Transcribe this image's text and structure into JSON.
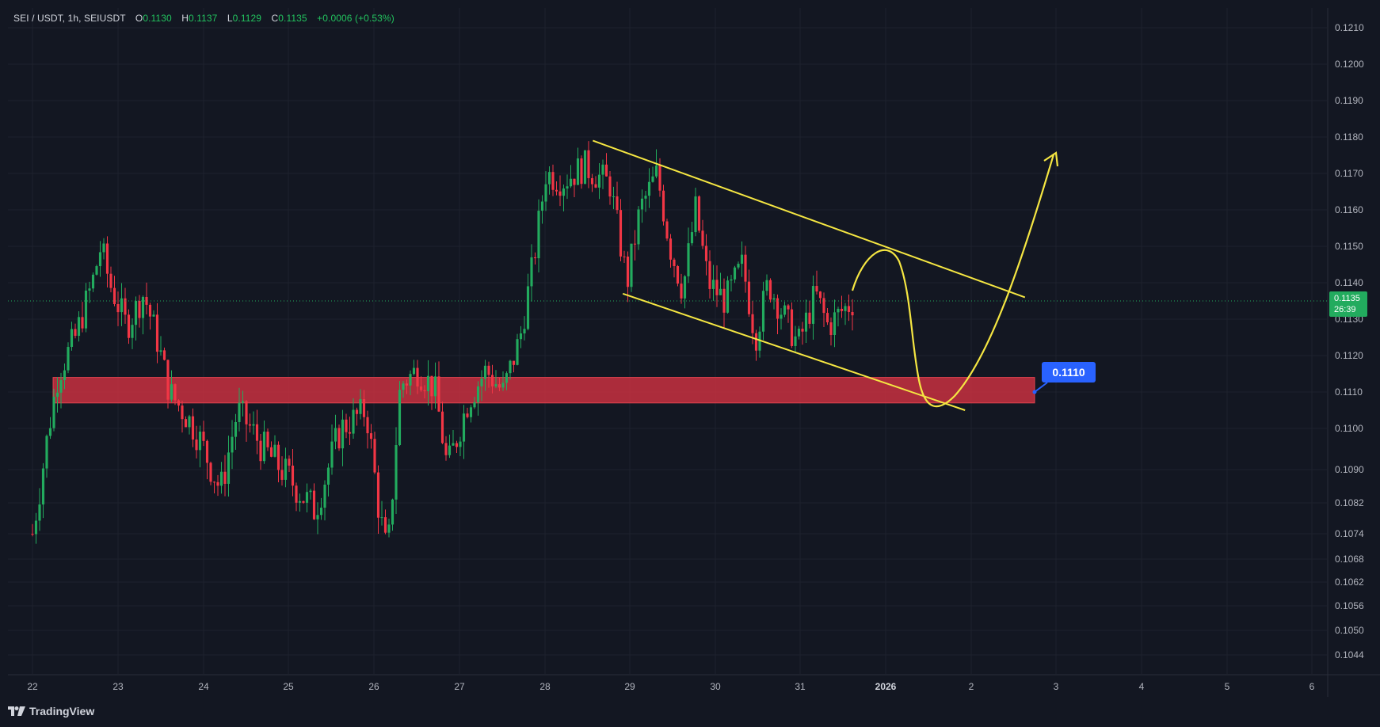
{
  "header": {
    "symbol": "SEI / USDT, 1h, SEIUSDT",
    "open_label": "O",
    "open": "0.1130",
    "high_label": "H",
    "high": "0.1137",
    "low_label": "L",
    "low": "0.1129",
    "close_label": "C",
    "close": "0.1135",
    "change": "+0.0006 (+0.53%)"
  },
  "brand": {
    "name": "TradingView",
    "icon": "tradingview-logo-icon"
  },
  "price_tag": {
    "price": "0.1135",
    "countdown": "26:39",
    "color": "#22ab5e"
  },
  "callout": {
    "label": "0.1110",
    "color": "#2962ff"
  },
  "colors": {
    "background": "#131722",
    "grid": "#1e222d",
    "up": "#22ab5e",
    "down": "#f23645",
    "drawing": "#f5e642",
    "zone": "#c8303f"
  },
  "chart_data": {
    "type": "candlestick",
    "symbol": "SEIUSDT",
    "timeframe": "1h",
    "x_ticks": [
      "22",
      "23",
      "24",
      "25",
      "26",
      "27",
      "28",
      "29",
      "30",
      "31",
      "2026",
      "2",
      "3",
      "4",
      "5",
      "6"
    ],
    "y_ticks": [
      "0.1210",
      "0.1200",
      "0.1190",
      "0.1180",
      "0.1170",
      "0.1160",
      "0.1150",
      "0.1140",
      "0.1130",
      "0.1120",
      "0.1110",
      "0.1100",
      "0.1090",
      "0.1082",
      "0.1074",
      "0.1068",
      "0.1062",
      "0.1056",
      "0.1050",
      "0.1044"
    ],
    "current_price": 0.1135,
    "support_zone": [
      0.1107,
      0.1114
    ],
    "support_level": 0.111,
    "channel_upper": [
      [
        28.55,
        0.1179
      ],
      [
        2.6,
        0.1136
      ]
    ],
    "channel_lower": [
      [
        28.9,
        0.1137
      ],
      [
        1.9,
        0.1105
      ]
    ],
    "close_path": [
      [
        22.0,
        0.1074
      ],
      [
        22.3,
        0.1115
      ],
      [
        22.5,
        0.1125
      ],
      [
        22.7,
        0.114
      ],
      [
        22.8,
        0.115
      ],
      [
        22.9,
        0.114
      ],
      [
        23.1,
        0.1128
      ],
      [
        23.3,
        0.1137
      ],
      [
        23.45,
        0.1125
      ],
      [
        23.6,
        0.111
      ],
      [
        23.9,
        0.11
      ],
      [
        24.2,
        0.1085
      ],
      [
        24.4,
        0.1105
      ],
      [
        24.7,
        0.1095
      ],
      [
        25.0,
        0.1088
      ],
      [
        25.3,
        0.108
      ],
      [
        25.6,
        0.11
      ],
      [
        25.9,
        0.1105
      ],
      [
        26.05,
        0.108
      ],
      [
        26.15,
        0.1068
      ],
      [
        26.3,
        0.1112
      ],
      [
        26.5,
        0.1116
      ],
      [
        26.7,
        0.1111
      ],
      [
        26.85,
        0.109
      ],
      [
        27.1,
        0.1108
      ],
      [
        27.3,
        0.1116
      ],
      [
        27.5,
        0.111
      ],
      [
        27.7,
        0.1125
      ],
      [
        27.85,
        0.1145
      ],
      [
        28.0,
        0.117
      ],
      [
        28.2,
        0.1168
      ],
      [
        28.45,
        0.1172
      ],
      [
        28.75,
        0.1167
      ],
      [
        28.95,
        0.114
      ],
      [
        29.1,
        0.116
      ],
      [
        29.3,
        0.117
      ],
      [
        29.45,
        0.115
      ],
      [
        29.6,
        0.1138
      ],
      [
        29.75,
        0.116
      ],
      [
        29.9,
        0.114
      ],
      [
        30.1,
        0.1135
      ],
      [
        30.3,
        0.1145
      ],
      [
        30.45,
        0.1125
      ],
      [
        30.6,
        0.114
      ],
      [
        30.8,
        0.113
      ],
      [
        30.95,
        0.1123
      ],
      [
        31.15,
        0.1137
      ],
      [
        31.3,
        0.1128
      ],
      [
        31.45,
        0.1132
      ],
      [
        31.6,
        0.1135
      ]
    ]
  }
}
